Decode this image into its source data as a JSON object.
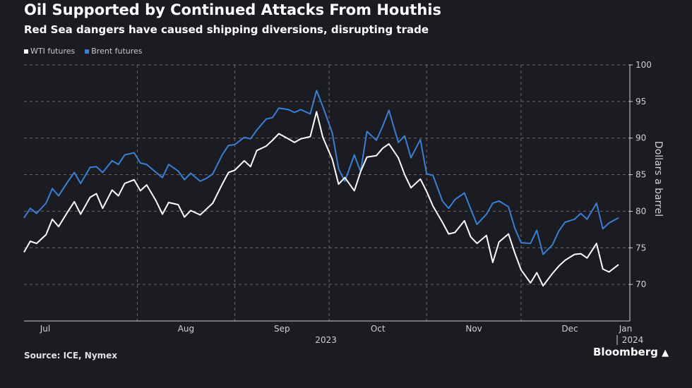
{
  "title": "Oil Supported by Continued Attacks From Houthis",
  "subtitle": "Red Sea dangers have caused shipping diversions, disrupting trade",
  "source": "Source: ICE, Nymex",
  "brand": "Bloomberg",
  "colors": {
    "background": "#1b1b22",
    "wti": "#ffffff",
    "brent": "#3a7fd5",
    "grid": "#6a6a6a",
    "text": "#d0d0d0"
  },
  "chart_data": {
    "type": "line",
    "title": "Oil Supported by Continued Attacks From Houthis",
    "subtitle": "Red Sea dangers have caused shipping diversions, disrupting trade",
    "ylabel": "Dollars a barrel",
    "ylim": [
      65,
      100
    ],
    "yticks": [
      "100",
      "95",
      "90",
      "85",
      "80",
      "75",
      "70"
    ],
    "ytick_values": [
      100,
      95,
      90,
      85,
      80,
      75,
      70
    ],
    "x_ticks": [
      {
        "date": "2023-07-01",
        "label": "Jul"
      },
      {
        "date": "2023-08-01",
        "label": "Aug"
      },
      {
        "date": "2023-09-01",
        "label": "Sep"
      },
      {
        "date": "2023-10-01",
        "label": "Oct"
      },
      {
        "date": "2023-11-01",
        "label": "Nov"
      },
      {
        "date": "2023-12-01",
        "label": "Dec"
      },
      {
        "date": "2024-01-01",
        "label": "Jan"
      }
    ],
    "x_group_labels": [
      {
        "date": "2023-09-30",
        "label": "2023"
      },
      {
        "date": "2024-01-01",
        "label": "2024"
      }
    ],
    "xlim": [
      "2023-06-26",
      "2024-01-01"
    ],
    "grid": true,
    "legend_position": "top-left",
    "x": [
      "2023-06-26",
      "2023-06-28",
      "2023-06-30",
      "2023-07-03",
      "2023-07-05",
      "2023-07-07",
      "2023-07-10",
      "2023-07-12",
      "2023-07-14",
      "2023-07-17",
      "2023-07-19",
      "2023-07-21",
      "2023-07-24",
      "2023-07-26",
      "2023-07-28",
      "2023-07-31",
      "2023-08-02",
      "2023-08-04",
      "2023-08-07",
      "2023-08-09",
      "2023-08-11",
      "2023-08-14",
      "2023-08-16",
      "2023-08-18",
      "2023-08-21",
      "2023-08-23",
      "2023-08-25",
      "2023-08-28",
      "2023-08-30",
      "2023-09-01",
      "2023-09-04",
      "2023-09-06",
      "2023-09-08",
      "2023-09-11",
      "2023-09-13",
      "2023-09-15",
      "2023-09-18",
      "2023-09-20",
      "2023-09-22",
      "2023-09-25",
      "2023-09-27",
      "2023-09-29",
      "2023-10-02",
      "2023-10-04",
      "2023-10-06",
      "2023-10-09",
      "2023-10-11",
      "2023-10-13",
      "2023-10-16",
      "2023-10-18",
      "2023-10-20",
      "2023-10-23",
      "2023-10-25",
      "2023-10-27",
      "2023-10-30",
      "2023-11-01",
      "2023-11-03",
      "2023-11-06",
      "2023-11-08",
      "2023-11-10",
      "2023-11-13",
      "2023-11-15",
      "2023-11-17",
      "2023-11-20",
      "2023-11-22",
      "2023-11-24",
      "2023-11-27",
      "2023-11-29",
      "2023-12-01",
      "2023-12-04",
      "2023-12-06",
      "2023-12-08",
      "2023-12-11",
      "2023-12-13",
      "2023-12-15",
      "2023-12-18",
      "2023-12-20",
      "2023-12-22",
      "2023-12-25",
      "2023-12-27",
      "2023-12-29",
      "2024-01-01"
    ],
    "series": [
      {
        "name": "WTI futures",
        "color": "#ffffff",
        "values": [
          74.4,
          75.9,
          75.6,
          76.8,
          78.9,
          77.9,
          80.0,
          81.3,
          79.6,
          81.9,
          82.4,
          80.4,
          82.9,
          82.1,
          83.8,
          84.3,
          82.8,
          83.6,
          81.4,
          79.6,
          81.2,
          80.9,
          79.2,
          80.1,
          79.5,
          80.3,
          81.1,
          83.7,
          85.3,
          85.6,
          86.9,
          86.1,
          88.3,
          88.9,
          89.7,
          90.6,
          89.9,
          89.4,
          89.9,
          90.2,
          93.6,
          90.1,
          87.1,
          83.7,
          84.6,
          82.8,
          85.4,
          87.4,
          87.6,
          88.6,
          89.2,
          87.3,
          85.0,
          83.2,
          84.4,
          82.7,
          80.7,
          78.5,
          76.9,
          77.1,
          78.7,
          76.5,
          75.6,
          76.7,
          73.0,
          75.8,
          76.9,
          74.3,
          72.0,
          70.2,
          71.6,
          69.8,
          71.5,
          72.5,
          73.3,
          74.1,
          74.2,
          73.6,
          75.6,
          72.1,
          71.7,
          72.7
        ]
      },
      {
        "name": "Brent futures",
        "color": "#3a7fd5",
        "values": [
          79.1,
          80.4,
          79.7,
          81.1,
          83.1,
          82.1,
          84.1,
          85.3,
          83.8,
          86.0,
          86.1,
          85.3,
          86.9,
          86.4,
          87.7,
          88.0,
          86.6,
          86.4,
          85.3,
          84.6,
          86.4,
          85.5,
          84.3,
          85.2,
          84.1,
          84.5,
          85.1,
          87.7,
          89.0,
          89.1,
          90.1,
          89.9,
          91.1,
          92.6,
          92.8,
          94.1,
          93.9,
          93.5,
          93.9,
          93.3,
          96.5,
          94.3,
          90.7,
          85.8,
          84.1,
          87.7,
          85.4,
          90.9,
          89.7,
          91.6,
          93.8,
          89.4,
          90.3,
          87.3,
          89.8,
          85.1,
          84.9,
          81.4,
          80.4,
          81.6,
          82.5,
          80.3,
          78.2,
          79.6,
          81.1,
          81.4,
          80.6,
          77.7,
          75.7,
          75.6,
          77.4,
          74.1,
          75.4,
          77.3,
          78.5,
          78.9,
          79.7,
          78.9,
          81.1,
          77.6,
          78.4,
          79.1
        ]
      }
    ]
  }
}
